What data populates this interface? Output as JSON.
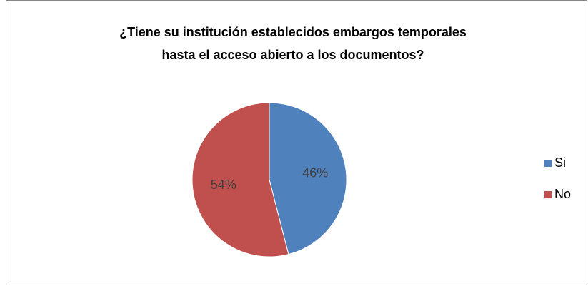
{
  "chart_data": {
    "type": "pie",
    "title": [
      "¿Tiene su institución establecidos embargos temporales",
      "hasta el acceso abierto a los documentos?"
    ],
    "series": [
      {
        "name": "Si",
        "color": "#4f81bd",
        "values": [
          46
        ],
        "value_labels": [
          "46%"
        ]
      },
      {
        "name": "No",
        "color": "#c0504d",
        "values": [
          54
        ],
        "value_labels": [
          "54%"
        ]
      }
    ],
    "legend": "right"
  }
}
